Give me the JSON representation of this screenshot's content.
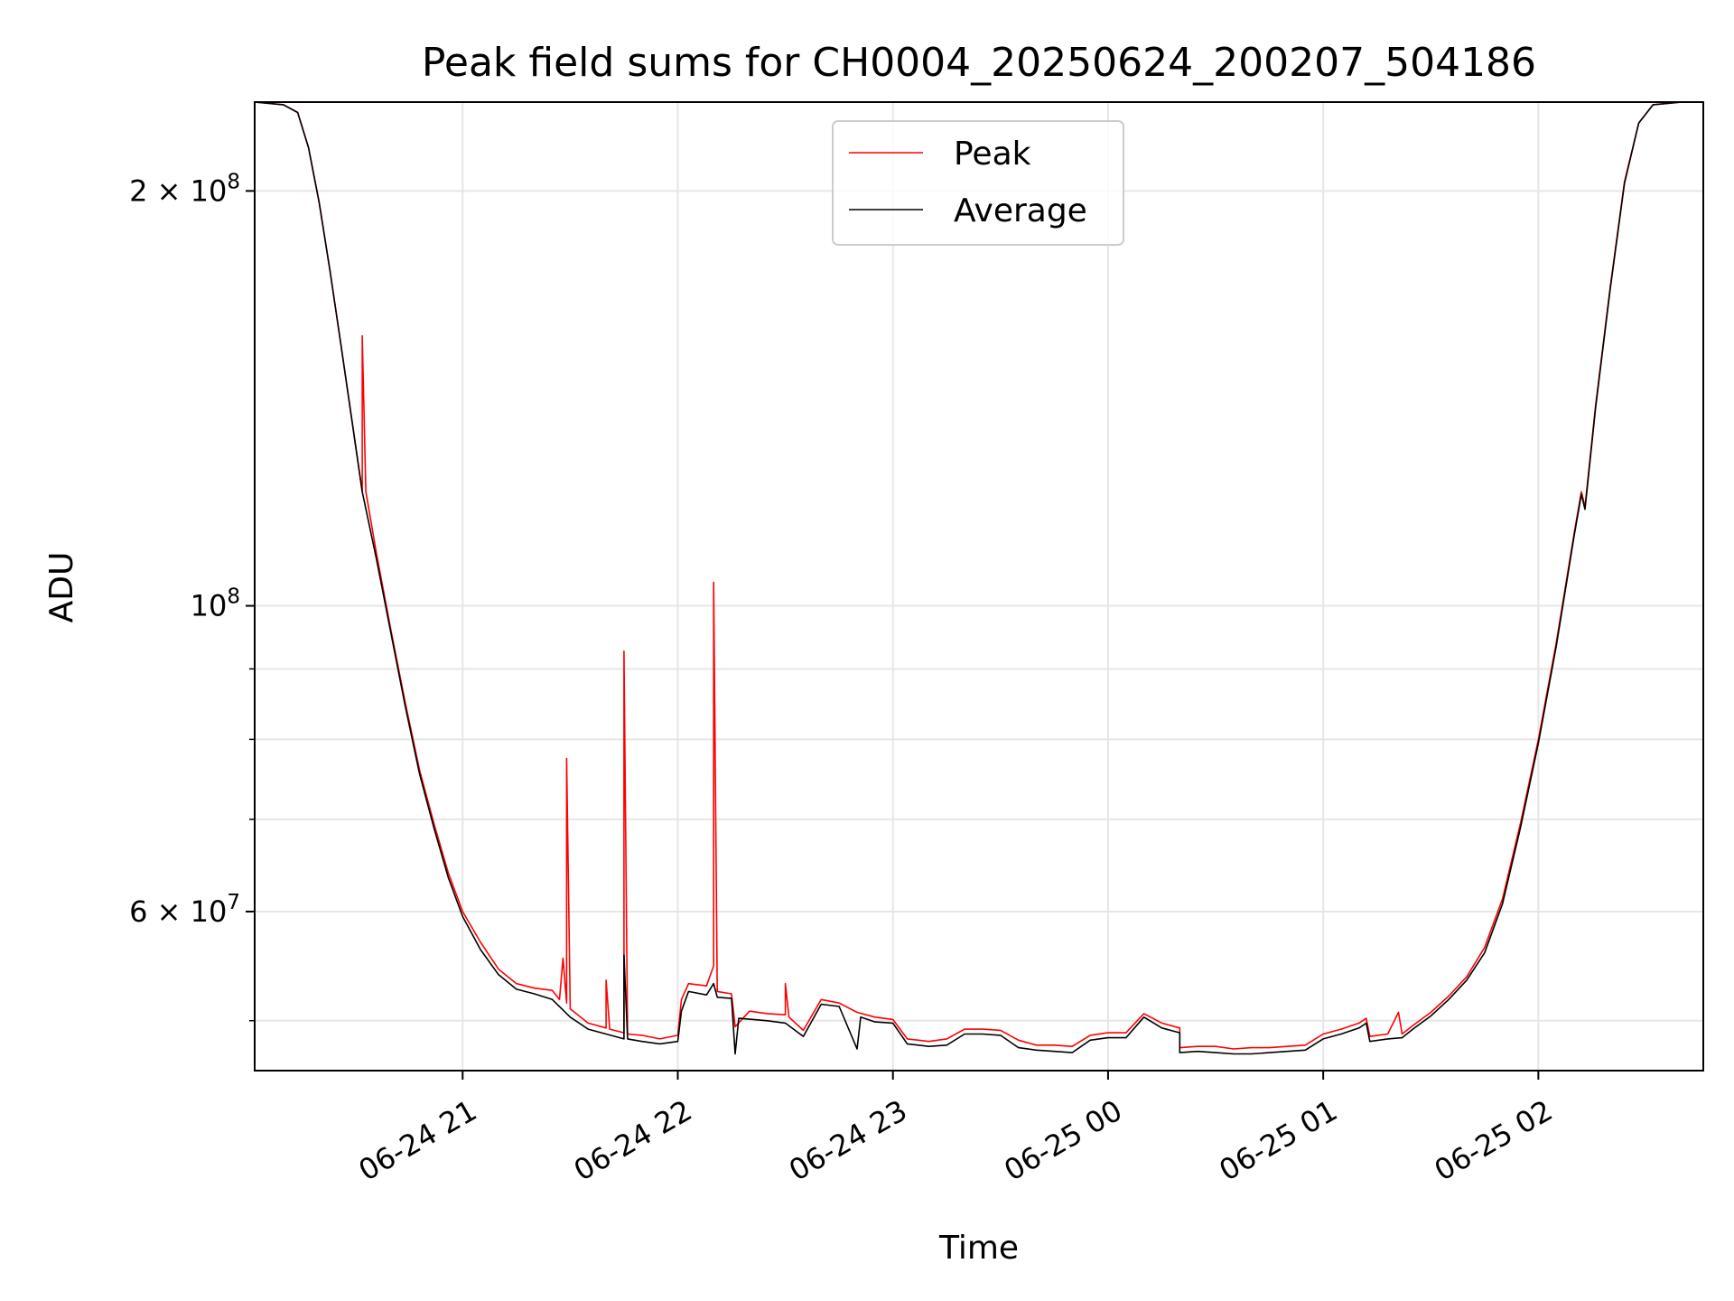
{
  "chart_data": {
    "type": "line",
    "title": "Peak field sums for CH0004_20250624_200207_504186",
    "xlabel": "Time",
    "ylabel": "ADU",
    "yscale": "log",
    "grid": true,
    "legend_position": "top-center",
    "xlim": [
      "2025-06-24 20:02",
      "2025-06-25 02:46"
    ],
    "ylim": [
      46000000,
      232000000
    ],
    "x_ticks": [
      {
        "value": "2025-06-24 21:00",
        "label": "06-24 21"
      },
      {
        "value": "2025-06-24 22:00",
        "label": "06-24 22"
      },
      {
        "value": "2025-06-24 23:00",
        "label": "06-24 23"
      },
      {
        "value": "2025-06-25 00:00",
        "label": "06-25 00"
      },
      {
        "value": "2025-06-25 01:00",
        "label": "06-25 01"
      },
      {
        "value": "2025-06-25 02:00",
        "label": "06-25 02"
      }
    ],
    "y_ticks": [
      {
        "value": 200000000,
        "mantissa": "2",
        "exponent": "8"
      },
      {
        "value": 100000000,
        "mantissa": "",
        "exponent": "8"
      },
      {
        "value": 60000000,
        "mantissa": "6",
        "exponent": "7"
      }
    ],
    "y_minor_ticks": [
      50000000,
      70000000,
      80000000,
      90000000
    ],
    "series": [
      {
        "name": "Peak",
        "color": "#ff0000",
        "points": [
          [
            "2025-06-24 20:02",
            232000000
          ],
          [
            "2025-06-24 20:10",
            231000000
          ],
          [
            "2025-06-24 20:14",
            228000000
          ],
          [
            "2025-06-24 20:17",
            215000000
          ],
          [
            "2025-06-24 20:20",
            196000000
          ],
          [
            "2025-06-24 20:23",
            175000000
          ],
          [
            "2025-06-24 20:26",
            155000000
          ],
          [
            "2025-06-24 20:29",
            137000000
          ],
          [
            "2025-06-24 20:32",
            121000000
          ],
          [
            "2025-06-24 20:32",
            157000000
          ],
          [
            "2025-06-24 20:33",
            121000000
          ],
          [
            "2025-06-24 20:36",
            109000000
          ],
          [
            "2025-06-24 20:40",
            96000000
          ],
          [
            "2025-06-24 20:44",
            85000000
          ],
          [
            "2025-06-24 20:48",
            76000000
          ],
          [
            "2025-06-24 20:52",
            69500000
          ],
          [
            "2025-06-24 20:56",
            64000000
          ],
          [
            "2025-06-24 21:00",
            60000000
          ],
          [
            "2025-06-24 21:05",
            57000000
          ],
          [
            "2025-06-24 21:10",
            54500000
          ],
          [
            "2025-06-24 21:15",
            53200000
          ],
          [
            "2025-06-24 21:20",
            52800000
          ],
          [
            "2025-06-24 21:25",
            52600000
          ],
          [
            "2025-06-24 21:27",
            51800000
          ],
          [
            "2025-06-24 21:28",
            55500000
          ],
          [
            "2025-06-24 21:29",
            51500000
          ],
          [
            "2025-06-24 21:29",
            77500000
          ],
          [
            "2025-06-24 21:30",
            51000000
          ],
          [
            "2025-06-24 21:35",
            49800000
          ],
          [
            "2025-06-24 21:40",
            49400000
          ],
          [
            "2025-06-24 21:40",
            53500000
          ],
          [
            "2025-06-24 21:41",
            49300000
          ],
          [
            "2025-06-24 21:45",
            49000000
          ],
          [
            "2025-06-24 21:45",
            92700000
          ],
          [
            "2025-06-24 21:46",
            48900000
          ],
          [
            "2025-06-24 21:50",
            48800000
          ],
          [
            "2025-06-24 21:55",
            48500000
          ],
          [
            "2025-06-24 22:00",
            48800000
          ],
          [
            "2025-06-24 22:01",
            51800000
          ],
          [
            "2025-06-24 22:03",
            53200000
          ],
          [
            "2025-06-24 22:08",
            53000000
          ],
          [
            "2025-06-24 22:10",
            54800000
          ],
          [
            "2025-06-24 22:10",
            104000000
          ],
          [
            "2025-06-24 22:11",
            52500000
          ],
          [
            "2025-06-24 22:15",
            52300000
          ],
          [
            "2025-06-24 22:16",
            49500000
          ],
          [
            "2025-06-24 22:20",
            50800000
          ],
          [
            "2025-06-24 22:25",
            50600000
          ],
          [
            "2025-06-24 22:30",
            50500000
          ],
          [
            "2025-06-24 22:30",
            53200000
          ],
          [
            "2025-06-24 22:31",
            50300000
          ],
          [
            "2025-06-24 22:35",
            49200000
          ],
          [
            "2025-06-24 22:40",
            51800000
          ],
          [
            "2025-06-24 22:45",
            51500000
          ],
          [
            "2025-06-24 22:50",
            50700000
          ],
          [
            "2025-06-24 22:55",
            50300000
          ],
          [
            "2025-06-24 23:00",
            50100000
          ],
          [
            "2025-06-24 23:04",
            48500000
          ],
          [
            "2025-06-24 23:10",
            48300000
          ],
          [
            "2025-06-24 23:15",
            48500000
          ],
          [
            "2025-06-24 23:20",
            49300000
          ],
          [
            "2025-06-24 23:25",
            49300000
          ],
          [
            "2025-06-24 23:30",
            49200000
          ],
          [
            "2025-06-24 23:35",
            48400000
          ],
          [
            "2025-06-24 23:40",
            48000000
          ],
          [
            "2025-06-24 23:45",
            48000000
          ],
          [
            "2025-06-24 23:50",
            47900000
          ],
          [
            "2025-06-24 23:55",
            48800000
          ],
          [
            "2025-06-25 00:00",
            49000000
          ],
          [
            "2025-06-25 00:05",
            49000000
          ],
          [
            "2025-06-25 00:10",
            50600000
          ],
          [
            "2025-06-25 00:15",
            49800000
          ],
          [
            "2025-06-25 00:20",
            49400000
          ],
          [
            "2025-06-25 00:20",
            47800000
          ],
          [
            "2025-06-25 00:25",
            47900000
          ],
          [
            "2025-06-25 00:30",
            47900000
          ],
          [
            "2025-06-25 00:35",
            47700000
          ],
          [
            "2025-06-25 00:40",
            47800000
          ],
          [
            "2025-06-25 00:45",
            47800000
          ],
          [
            "2025-06-25 00:50",
            47900000
          ],
          [
            "2025-06-25 00:55",
            48000000
          ],
          [
            "2025-06-25 01:00",
            48900000
          ],
          [
            "2025-06-25 01:05",
            49300000
          ],
          [
            "2025-06-25 01:10",
            49800000
          ],
          [
            "2025-06-25 01:12",
            50200000
          ],
          [
            "2025-06-25 01:13",
            48700000
          ],
          [
            "2025-06-25 01:18",
            48900000
          ],
          [
            "2025-06-25 01:21",
            50700000
          ],
          [
            "2025-06-25 01:22",
            48900000
          ],
          [
            "2025-06-25 01:25",
            49600000
          ],
          [
            "2025-06-25 01:30",
            50700000
          ],
          [
            "2025-06-25 01:35",
            52100000
          ],
          [
            "2025-06-25 01:40",
            53800000
          ],
          [
            "2025-06-25 01:45",
            56500000
          ],
          [
            "2025-06-25 01:50",
            61300000
          ],
          [
            "2025-06-25 01:55",
            69500000
          ],
          [
            "2025-06-25 02:00",
            80000000
          ],
          [
            "2025-06-25 02:05",
            94000000
          ],
          [
            "2025-06-25 02:10",
            113000000
          ],
          [
            "2025-06-25 02:12",
            121000000
          ],
          [
            "2025-06-25 02:13",
            118000000
          ],
          [
            "2025-06-25 02:16",
            140000000
          ],
          [
            "2025-06-25 02:20",
            170000000
          ],
          [
            "2025-06-25 02:24",
            203000000
          ],
          [
            "2025-06-25 02:28",
            224000000
          ],
          [
            "2025-06-25 02:32",
            231000000
          ],
          [
            "2025-06-25 02:40",
            232000000
          ],
          [
            "2025-06-25 02:46",
            232000000
          ]
        ]
      },
      {
        "name": "Average",
        "color": "#000000",
        "points": [
          [
            "2025-06-24 20:02",
            232000000
          ],
          [
            "2025-06-24 20:10",
            231000000
          ],
          [
            "2025-06-24 20:14",
            228000000
          ],
          [
            "2025-06-24 20:17",
            215000000
          ],
          [
            "2025-06-24 20:20",
            196000000
          ],
          [
            "2025-06-24 20:23",
            175000000
          ],
          [
            "2025-06-24 20:26",
            155000000
          ],
          [
            "2025-06-24 20:29",
            137000000
          ],
          [
            "2025-06-24 20:32",
            121000000
          ],
          [
            "2025-06-24 20:36",
            108000000
          ],
          [
            "2025-06-24 20:40",
            95500000
          ],
          [
            "2025-06-24 20:44",
            84500000
          ],
          [
            "2025-06-24 20:48",
            75500000
          ],
          [
            "2025-06-24 20:52",
            69000000
          ],
          [
            "2025-06-24 20:56",
            63500000
          ],
          [
            "2025-06-24 21:00",
            59500000
          ],
          [
            "2025-06-24 21:05",
            56300000
          ],
          [
            "2025-06-24 21:10",
            54000000
          ],
          [
            "2025-06-24 21:15",
            52700000
          ],
          [
            "2025-06-24 21:20",
            52300000
          ],
          [
            "2025-06-24 21:25",
            51800000
          ],
          [
            "2025-06-24 21:30",
            50300000
          ],
          [
            "2025-06-24 21:35",
            49300000
          ],
          [
            "2025-06-24 21:40",
            48900000
          ],
          [
            "2025-06-24 21:45",
            48500000
          ],
          [
            "2025-06-24 21:45",
            55800000
          ],
          [
            "2025-06-24 21:46",
            48500000
          ],
          [
            "2025-06-24 21:50",
            48300000
          ],
          [
            "2025-06-24 21:55",
            48100000
          ],
          [
            "2025-06-24 22:00",
            48300000
          ],
          [
            "2025-06-24 22:01",
            50800000
          ],
          [
            "2025-06-24 22:03",
            52500000
          ],
          [
            "2025-06-24 22:08",
            52200000
          ],
          [
            "2025-06-24 22:10",
            53200000
          ],
          [
            "2025-06-24 22:11",
            52000000
          ],
          [
            "2025-06-24 22:15",
            51900000
          ],
          [
            "2025-06-24 22:16",
            47300000
          ],
          [
            "2025-06-24 22:17",
            50200000
          ],
          [
            "2025-06-24 22:25",
            50000000
          ],
          [
            "2025-06-24 22:30",
            49800000
          ],
          [
            "2025-06-24 22:35",
            48700000
          ],
          [
            "2025-06-24 22:40",
            51400000
          ],
          [
            "2025-06-24 22:45",
            51200000
          ],
          [
            "2025-06-24 22:50",
            47700000
          ],
          [
            "2025-06-24 22:51",
            50300000
          ],
          [
            "2025-06-24 22:55",
            49900000
          ],
          [
            "2025-06-24 23:00",
            49800000
          ],
          [
            "2025-06-24 23:04",
            48100000
          ],
          [
            "2025-06-24 23:10",
            47900000
          ],
          [
            "2025-06-24 23:15",
            48000000
          ],
          [
            "2025-06-24 23:20",
            48900000
          ],
          [
            "2025-06-24 23:25",
            48900000
          ],
          [
            "2025-06-24 23:30",
            48800000
          ],
          [
            "2025-06-24 23:35",
            47800000
          ],
          [
            "2025-06-24 23:40",
            47600000
          ],
          [
            "2025-06-24 23:45",
            47500000
          ],
          [
            "2025-06-24 23:50",
            47400000
          ],
          [
            "2025-06-24 23:55",
            48400000
          ],
          [
            "2025-06-25 00:00",
            48600000
          ],
          [
            "2025-06-25 00:05",
            48600000
          ],
          [
            "2025-06-25 00:10",
            50300000
          ],
          [
            "2025-06-25 00:15",
            49400000
          ],
          [
            "2025-06-25 00:20",
            49000000
          ],
          [
            "2025-06-25 00:20",
            47400000
          ],
          [
            "2025-06-25 00:25",
            47500000
          ],
          [
            "2025-06-25 00:30",
            47400000
          ],
          [
            "2025-06-25 00:35",
            47300000
          ],
          [
            "2025-06-25 00:40",
            47300000
          ],
          [
            "2025-06-25 00:45",
            47400000
          ],
          [
            "2025-06-25 00:50",
            47500000
          ],
          [
            "2025-06-25 00:55",
            47600000
          ],
          [
            "2025-06-25 01:00",
            48500000
          ],
          [
            "2025-06-25 01:05",
            48900000
          ],
          [
            "2025-06-25 01:10",
            49400000
          ],
          [
            "2025-06-25 01:12",
            49800000
          ],
          [
            "2025-06-25 01:13",
            48300000
          ],
          [
            "2025-06-25 01:18",
            48500000
          ],
          [
            "2025-06-25 01:22",
            48600000
          ],
          [
            "2025-06-25 01:25",
            49300000
          ],
          [
            "2025-06-25 01:30",
            50400000
          ],
          [
            "2025-06-25 01:35",
            51800000
          ],
          [
            "2025-06-25 01:40",
            53500000
          ],
          [
            "2025-06-25 01:45",
            56000000
          ],
          [
            "2025-06-25 01:50",
            60800000
          ],
          [
            "2025-06-25 01:55",
            69000000
          ],
          [
            "2025-06-25 02:00",
            79500000
          ],
          [
            "2025-06-25 02:05",
            93500000
          ],
          [
            "2025-06-25 02:10",
            112500000
          ],
          [
            "2025-06-25 02:12",
            120500000
          ],
          [
            "2025-06-25 02:13",
            117500000
          ],
          [
            "2025-06-25 02:16",
            139500000
          ],
          [
            "2025-06-25 02:20",
            169500000
          ],
          [
            "2025-06-25 02:24",
            202500000
          ],
          [
            "2025-06-25 02:28",
            224000000
          ],
          [
            "2025-06-25 02:32",
            231000000
          ],
          [
            "2025-06-25 02:40",
            232000000
          ],
          [
            "2025-06-25 02:46",
            232000000
          ]
        ]
      }
    ]
  }
}
